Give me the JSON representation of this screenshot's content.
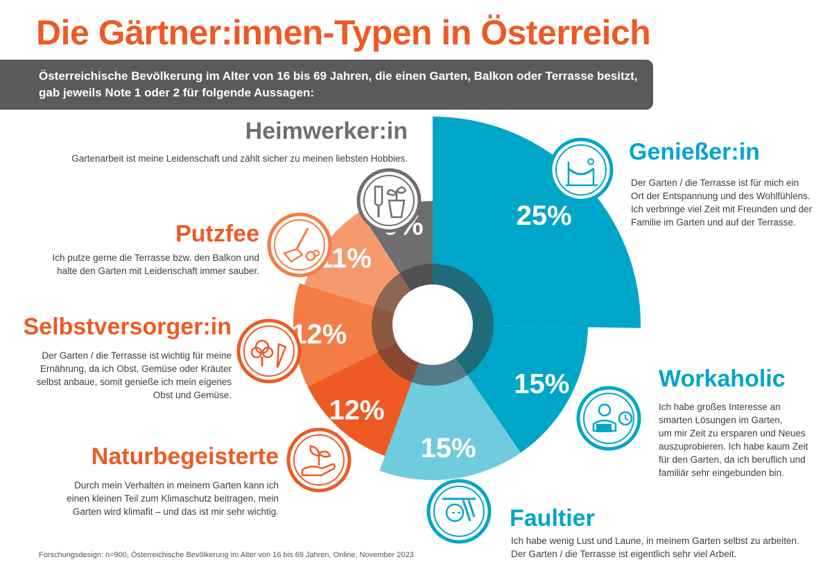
{
  "title": "Die Gärtner:innen-Typen in Österreich",
  "subtitle_line1": "Österreichische Bevölkerung im Alter von 16 bis 69 Jahren, die einen Garten, Balkon oder Terrasse besitzt,",
  "subtitle_line2": "gab jeweils Note 1 oder 2 für folgende Aussagen:",
  "footnote": "Forschungsdesign: n=900, Österreichische Bevölkerung im Alter von 16 bis 69 Jahren, Online, November 2023",
  "types": {
    "geniesser": {
      "name": "Genießer:in",
      "text_lines": [
        "Der Garten / die Terrasse ist für mich ein",
        "Ort der Entspannung und des Wohlfühlens.",
        "Ich verbringe viel Zeit mit Freunden und der",
        "Familie im Garten und auf der Terrasse."
      ],
      "icon": "hammock-sun-icon"
    },
    "workaholic": {
      "name": "Workaholic",
      "text_lines": [
        "Ich habe großes Interesse an",
        "smarten Lösungen im Garten,",
        "um mir Zeit zu ersparen und Neues",
        "auszuprobieren. Ich habe kaum Zeit",
        "für den Garten, da ich beruflich und",
        "familiär sehr eingebunden bin."
      ],
      "icon": "laptop-clock-icon"
    },
    "faultier": {
      "name": "Faultier",
      "text_lines": [
        "Ich habe wenig Lust und Laune, in meinem Garten selbst zu arbeiten.",
        "Der Garten / die Terrasse ist eigentlich sehr viel Arbeit."
      ],
      "icon": "sloth-icon"
    },
    "naturbegeisterte": {
      "name": "Naturbegeisterte",
      "text_lines": [
        "Durch mein Verhalten in meinem Garten kann ich",
        "einen kleinen Teil zum Klimaschutz beitragen, mein",
        "Garten wird klimafit – und das ist mir sehr wichtig."
      ],
      "icon": "hand-plant-icon"
    },
    "selbstversorger": {
      "name": "Selbstversorger:in",
      "text_lines": [
        "Der Garten / die Terrasse ist wichtig für meine",
        "Ernährung, da ich Obst, Gemüse oder Kräuter",
        "selbst anbaue, somit genieße ich mein eigenes",
        "Obst und Gemüse."
      ],
      "icon": "vegetables-icon"
    },
    "putzfee": {
      "name": "Putzfee",
      "text_lines": [
        "Ich putze gerne die Terrasse bzw. den Balkon und",
        "halte  den Garten mit Leidenschaft immer sauber."
      ],
      "icon": "broom-icon"
    },
    "heimwerker": {
      "name": "Heimwerker:in",
      "text_lines": [
        "Gartenarbeit ist meine Leidenschaft und zählt sicher zu meinen liebsten Hobbies."
      ],
      "icon": "trowel-plant-icon"
    }
  },
  "colors": {
    "title": "#ee5a24",
    "teal": "#00a6c7",
    "orange": "#ee5a24",
    "gray": "#6e6e70",
    "subtitle_bg": "#5a5a5c"
  },
  "chart_data": {
    "type": "pie",
    "variant": "rose",
    "categories": [
      "Genießer:in",
      "Workaholic",
      "Faultier",
      "Naturbegeisterte",
      "Selbstversorger:in",
      "Putzfee",
      "Heimwerker:in"
    ],
    "values": [
      25,
      15,
      15,
      12,
      12,
      11,
      9
    ],
    "labels": [
      "25%",
      "15%",
      "15%",
      "12%",
      "12%",
      "11%",
      "9%"
    ],
    "colors": [
      "#00a6c7",
      "#00a6c7",
      "#6fcbde",
      "#ee5a24",
      "#f47c45",
      "#f59a6f",
      "#6e6e70"
    ]
  }
}
